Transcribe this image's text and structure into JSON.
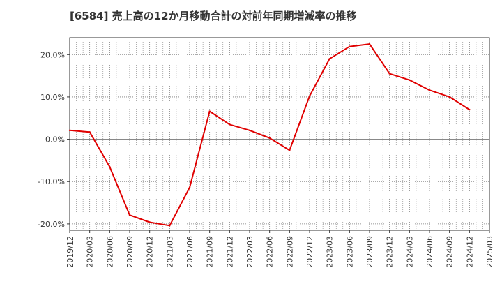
{
  "title": "[6584]  売上高の12か月移動合計の対前年同期増減率の推移",
  "colors": {
    "line": "#e00000",
    "grid": "#777777",
    "zero": "#777777",
    "axis": "#333333",
    "plot_bg": "#ffffff"
  },
  "chart_data": {
    "type": "line",
    "title": "[6584]  売上高の12か月移動合計の対前年同期増減率の推移",
    "xlabel": "",
    "ylabel": "",
    "ylim": [
      -21.5,
      24.0
    ],
    "xlim": [
      0,
      21
    ],
    "grid": true,
    "y_ticks": [
      -20,
      -10,
      0,
      10,
      20
    ],
    "y_tick_labels": [
      "-20.0%",
      "-10.0%",
      "0.0%",
      "10.0%",
      "20.0%"
    ],
    "x_tick_labels": [
      "2019/12",
      "2020/03",
      "2020/06",
      "2020/09",
      "2020/12",
      "2021/03",
      "2021/06",
      "2021/09",
      "2021/12",
      "2022/03",
      "2022/06",
      "2022/09",
      "2022/12",
      "2023/03",
      "2023/06",
      "2023/09",
      "2023/12",
      "2024/03",
      "2024/06",
      "2024/09",
      "2024/12",
      "2025/03"
    ],
    "series": [
      {
        "name": "売上高の12か月移動合計の対前年同期増減率",
        "x": [
          "2019/12",
          "2020/03",
          "2020/06",
          "2020/09",
          "2020/12",
          "2021/03",
          "2021/06",
          "2021/09",
          "2021/12",
          "2022/03",
          "2022/06",
          "2022/09",
          "2022/12",
          "2023/03",
          "2023/06",
          "2023/09",
          "2023/12",
          "2024/03",
          "2024/06",
          "2024/09",
          "2024/12"
        ],
        "values": [
          2.1,
          1.7,
          -6.5,
          -17.9,
          -19.6,
          -20.4,
          -11.4,
          6.6,
          3.5,
          2.1,
          0.3,
          -2.6,
          10.2,
          19.0,
          21.9,
          22.5,
          15.5,
          14.0,
          11.6,
          10.0,
          7.0
        ]
      }
    ]
  }
}
